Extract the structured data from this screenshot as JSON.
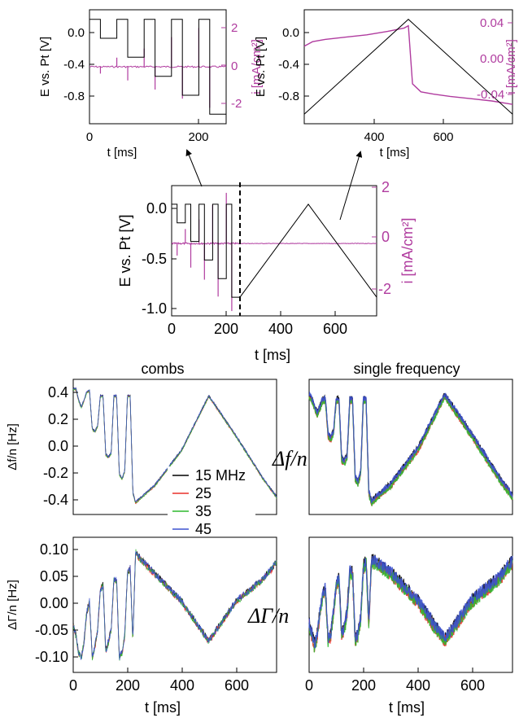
{
  "colors": {
    "potential": "#000000",
    "current": "#b03c9f",
    "s15": "#000000",
    "s25": "#e8302a",
    "s35": "#2fb82f",
    "s45": "#3d52cf"
  },
  "labels": {
    "t_axis": "t [ms]",
    "e_axis": "E vs. Pt [V]",
    "i_axis": "i [mA/cm²]",
    "df_axis": "Δf/n [Hz]",
    "dg_axis": "ΔΓ/n [Hz]",
    "combs_title": "combs",
    "single_title": "single frequency",
    "df_symbol": "Δf/n",
    "dg_symbol": "ΔΓ/n"
  },
  "chart_data": [
    {
      "id": "inset-left",
      "type": "line",
      "xlabel": "t [ms]",
      "ylabel": "E vs. Pt [V]",
      "y2label": "i [mA/cm²]",
      "xlim": [
        0,
        250
      ],
      "ylim": [
        -1.0,
        0.2
      ],
      "y2lim": [
        -2.5,
        2.5
      ],
      "xticks": [
        "0",
        "200"
      ],
      "yticks": [
        "0.0",
        "-0.4",
        "-0.8"
      ],
      "y2ticks": [
        "2",
        "0",
        "-2"
      ],
      "series": [
        {
          "role": "potential",
          "x": [
            0,
            20,
            20,
            50,
            50,
            70,
            70,
            100,
            100,
            120,
            120,
            150,
            150,
            170,
            170,
            200,
            200,
            220,
            220,
            250
          ],
          "y": [
            0.1,
            0.1,
            -0.1,
            -0.1,
            0.1,
            0.1,
            -0.3,
            -0.3,
            0.1,
            0.1,
            -0.5,
            -0.5,
            0.1,
            0.1,
            -0.7,
            -0.7,
            0.1,
            0.1,
            -0.9,
            -0.9
          ]
        },
        {
          "role": "current",
          "x": [
            0,
            20,
            50,
            70,
            100,
            120,
            150,
            170,
            200,
            220
          ],
          "y": [
            0.0,
            -0.3,
            0.4,
            -0.6,
            0.8,
            -1.0,
            1.3,
            -1.4,
            1.7,
            -1.8
          ]
        }
      ]
    },
    {
      "id": "inset-right",
      "type": "line",
      "xlabel": "t [ms]",
      "ylabel": "E vs. Pt [V]",
      "y2label": "i [mA/cm²]",
      "xlim": [
        250,
        750
      ],
      "ylim": [
        -1.0,
        0.2
      ],
      "y2lim": [
        -0.05,
        0.05
      ],
      "xticks": [
        "400",
        "600"
      ],
      "yticks": [
        "0.0",
        "-0.4",
        "-0.8"
      ],
      "y2ticks": [
        "0.04",
        "0.00",
        "-0.04"
      ],
      "series": [
        {
          "role": "potential",
          "x": [
            250,
            500,
            750
          ],
          "y": [
            -0.9,
            0.1,
            -0.9
          ]
        },
        {
          "role": "current",
          "x": [
            250,
            270,
            300,
            350,
            400,
            450,
            490,
            500,
            510,
            530,
            560,
            600,
            650,
            700,
            750
          ],
          "y": [
            0.018,
            0.022,
            0.024,
            0.026,
            0.028,
            0.031,
            0.034,
            0.036,
            -0.015,
            -0.022,
            -0.024,
            -0.026,
            -0.028,
            -0.03,
            -0.033
          ]
        }
      ]
    },
    {
      "id": "main-potential",
      "type": "line",
      "xlabel": "t [ms]",
      "ylabel": "E vs. Pt [V]",
      "y2label": "i [mA/cm²]",
      "xlim": [
        0,
        750
      ],
      "ylim": [
        -1.1,
        0.3
      ],
      "y2lim": [
        -3,
        2.4
      ],
      "xticks": [
        "0",
        "200",
        "400",
        "600"
      ],
      "yticks": [
        "0.0",
        "-0.5",
        "-1.0"
      ],
      "y2ticks": [
        "2",
        "0",
        "-2"
      ],
      "series": [
        {
          "role": "potential",
          "x": [
            0,
            20,
            20,
            50,
            50,
            70,
            70,
            100,
            100,
            120,
            120,
            150,
            150,
            170,
            170,
            200,
            200,
            220,
            220,
            250,
            500,
            750
          ],
          "y": [
            0.1,
            0.1,
            -0.1,
            -0.1,
            0.1,
            0.1,
            -0.3,
            -0.3,
            0.1,
            0.1,
            -0.5,
            -0.5,
            0.1,
            0.1,
            -0.7,
            -0.7,
            0.1,
            0.1,
            -0.9,
            -0.9,
            0.1,
            -0.9
          ]
        },
        {
          "role": "current-spikes",
          "x": [
            20,
            50,
            70,
            100,
            120,
            150,
            170,
            200,
            220
          ],
          "y": [
            -0.5,
            0.6,
            -1.0,
            1.0,
            -1.5,
            1.6,
            -2.2,
            2.1,
            -2.8
          ]
        }
      ],
      "divider_x": 250
    },
    {
      "id": "combs-df",
      "type": "line",
      "title": "combs",
      "ylabel": "Δf/n [Hz]",
      "xlim": [
        0,
        750
      ],
      "ylim": [
        -0.5,
        0.45
      ],
      "yticks": [
        "0.4",
        "0.2",
        "0.0",
        "-0.2",
        "-0.4"
      ],
      "legend": [
        "15 MHz",
        "25",
        "35",
        "45"
      ],
      "series": [
        {
          "name": "15 MHz",
          "x": [
            0,
            10,
            20,
            30,
            40,
            50,
            60,
            70,
            80,
            90,
            100,
            110,
            120,
            130,
            140,
            150,
            160,
            170,
            180,
            190,
            200,
            210,
            220,
            230,
            240,
            300,
            400,
            500,
            600,
            700,
            750
          ],
          "y": [
            0.38,
            0.38,
            0.3,
            0.25,
            0.3,
            0.36,
            0.37,
            0.1,
            0.08,
            0.12,
            0.33,
            0.33,
            -0.08,
            -0.1,
            -0.07,
            0.33,
            0.33,
            -0.22,
            -0.25,
            -0.2,
            0.33,
            0.33,
            -0.35,
            -0.42,
            -0.4,
            -0.3,
            -0.05,
            0.33,
            0.05,
            -0.25,
            -0.38
          ]
        }
      ]
    },
    {
      "id": "single-df",
      "type": "line",
      "title": "single frequency",
      "xlim": [
        0,
        750
      ],
      "ylim": [
        -0.5,
        0.45
      ],
      "series": [
        {
          "name": "15 MHz",
          "x": [
            0,
            10,
            20,
            30,
            40,
            50,
            60,
            70,
            80,
            90,
            100,
            110,
            120,
            130,
            140,
            150,
            160,
            170,
            180,
            190,
            200,
            210,
            220,
            230,
            240,
            300,
            400,
            500,
            600,
            700,
            750
          ],
          "y": [
            0.33,
            0.3,
            0.25,
            0.2,
            0.25,
            0.3,
            0.3,
            0.05,
            0.03,
            0.07,
            0.3,
            0.3,
            -0.12,
            -0.14,
            -0.1,
            0.3,
            0.3,
            -0.25,
            -0.28,
            -0.22,
            0.3,
            0.3,
            -0.35,
            -0.42,
            -0.4,
            -0.3,
            -0.05,
            0.33,
            0.05,
            -0.25,
            -0.38
          ]
        }
      ]
    },
    {
      "id": "combs-dg",
      "type": "line",
      "ylabel": "ΔΓ/n [Hz]",
      "xlabel": "t [ms]",
      "xlim": [
        0,
        750
      ],
      "ylim": [
        -0.125,
        0.115
      ],
      "xticks": [
        "0",
        "200",
        "400",
        "600"
      ],
      "yticks": [
        "0.10",
        "0.05",
        "0.00",
        "-0.05",
        "-0.10"
      ],
      "series": [
        {
          "name": "15 MHz",
          "x": [
            0,
            10,
            20,
            30,
            40,
            50,
            60,
            70,
            80,
            90,
            100,
            110,
            120,
            130,
            140,
            150,
            160,
            170,
            180,
            190,
            200,
            210,
            220,
            230,
            240,
            300,
            400,
            500,
            600,
            700,
            750
          ],
          "y": [
            -0.04,
            -0.06,
            -0.09,
            -0.1,
            -0.07,
            -0.02,
            0.0,
            -0.1,
            -0.08,
            -0.05,
            0.02,
            0.03,
            -0.09,
            -0.07,
            -0.05,
            0.04,
            0.04,
            -0.1,
            -0.09,
            -0.06,
            0.05,
            0.06,
            -0.07,
            0.09,
            0.08,
            0.05,
            0.0,
            -0.07,
            0.0,
            0.04,
            0.07
          ]
        }
      ]
    },
    {
      "id": "single-dg",
      "type": "line",
      "xlabel": "t [ms]",
      "xlim": [
        0,
        750
      ],
      "ylim": [
        -0.125,
        0.115
      ],
      "xticks": [
        "0",
        "200",
        "400",
        "600"
      ],
      "series": [
        {
          "name": "15 MHz",
          "x": [
            0,
            10,
            20,
            30,
            40,
            50,
            60,
            70,
            80,
            90,
            100,
            110,
            120,
            130,
            140,
            150,
            160,
            170,
            180,
            190,
            200,
            210,
            220,
            230,
            240,
            300,
            400,
            500,
            600,
            700,
            750
          ],
          "y": [
            -0.04,
            -0.06,
            -0.08,
            -0.06,
            -0.02,
            0.01,
            0.02,
            -0.07,
            -0.06,
            -0.02,
            0.03,
            0.04,
            -0.06,
            -0.05,
            -0.02,
            0.05,
            0.05,
            -0.07,
            -0.06,
            -0.03,
            0.06,
            0.07,
            -0.04,
            0.07,
            0.07,
            0.05,
            0.0,
            -0.07,
            0.0,
            0.04,
            0.07
          ]
        }
      ]
    }
  ]
}
